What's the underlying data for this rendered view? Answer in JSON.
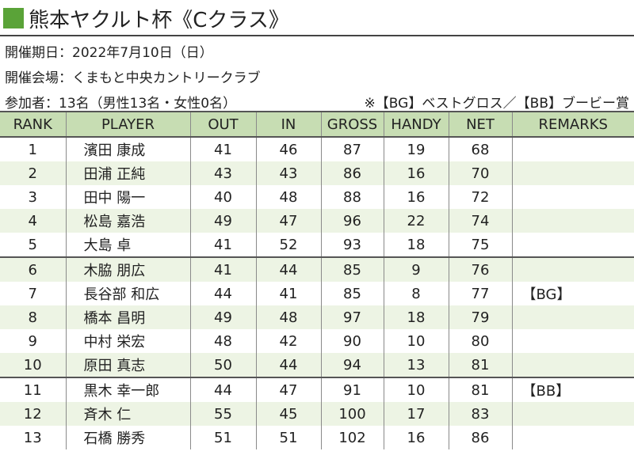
{
  "title": "熊本ヤクルト杯《Cクラス》",
  "date_line": "開催期日：2022年7月10日（日）",
  "venue_line": "開催会場：くまもと中央カントリークラブ",
  "entrants_line": "参加者：13名（男性13名・女性0名）",
  "legend_note": "※【BG】ベストグロス／【BB】ブービー賞",
  "accent_color": "#5aa338",
  "columns": [
    "RANK",
    "PLAYER",
    "OUT",
    "IN",
    "GROSS",
    "HANDY",
    "NET",
    "REMARKS"
  ],
  "rows": [
    {
      "rank": "1",
      "player": "濱田 康成",
      "out": "41",
      "in": "46",
      "gross": "87",
      "handy": "19",
      "net": "68",
      "remarks": ""
    },
    {
      "rank": "2",
      "player": "田浦 正純",
      "out": "43",
      "in": "43",
      "gross": "86",
      "handy": "16",
      "net": "70",
      "remarks": ""
    },
    {
      "rank": "3",
      "player": "田中 陽一",
      "out": "40",
      "in": "48",
      "gross": "88",
      "handy": "16",
      "net": "72",
      "remarks": ""
    },
    {
      "rank": "4",
      "player": "松島 嘉浩",
      "out": "49",
      "in": "47",
      "gross": "96",
      "handy": "22",
      "net": "74",
      "remarks": ""
    },
    {
      "rank": "5",
      "player": "大島 卓",
      "out": "41",
      "in": "52",
      "gross": "93",
      "handy": "18",
      "net": "75",
      "remarks": ""
    },
    {
      "rank": "6",
      "player": "木脇 朋広",
      "out": "41",
      "in": "44",
      "gross": "85",
      "handy": "9",
      "net": "76",
      "remarks": ""
    },
    {
      "rank": "7",
      "player": "長谷部 和広",
      "out": "44",
      "in": "41",
      "gross": "85",
      "handy": "8",
      "net": "77",
      "remarks": "【BG】"
    },
    {
      "rank": "8",
      "player": "橋本 昌明",
      "out": "49",
      "in": "48",
      "gross": "97",
      "handy": "18",
      "net": "79",
      "remarks": ""
    },
    {
      "rank": "9",
      "player": "中村 栄宏",
      "out": "48",
      "in": "42",
      "gross": "90",
      "handy": "10",
      "net": "80",
      "remarks": ""
    },
    {
      "rank": "10",
      "player": "原田 真志",
      "out": "50",
      "in": "44",
      "gross": "94",
      "handy": "13",
      "net": "81",
      "remarks": ""
    },
    {
      "rank": "11",
      "player": "黒木 幸一郎",
      "out": "44",
      "in": "47",
      "gross": "91",
      "handy": "10",
      "net": "81",
      "remarks": "【BB】"
    },
    {
      "rank": "12",
      "player": "斉木 仁",
      "out": "55",
      "in": "45",
      "gross": "100",
      "handy": "17",
      "net": "83",
      "remarks": ""
    },
    {
      "rank": "13",
      "player": "石橋 勝秀",
      "out": "51",
      "in": "51",
      "gross": "102",
      "handy": "16",
      "net": "86",
      "remarks": ""
    }
  ]
}
